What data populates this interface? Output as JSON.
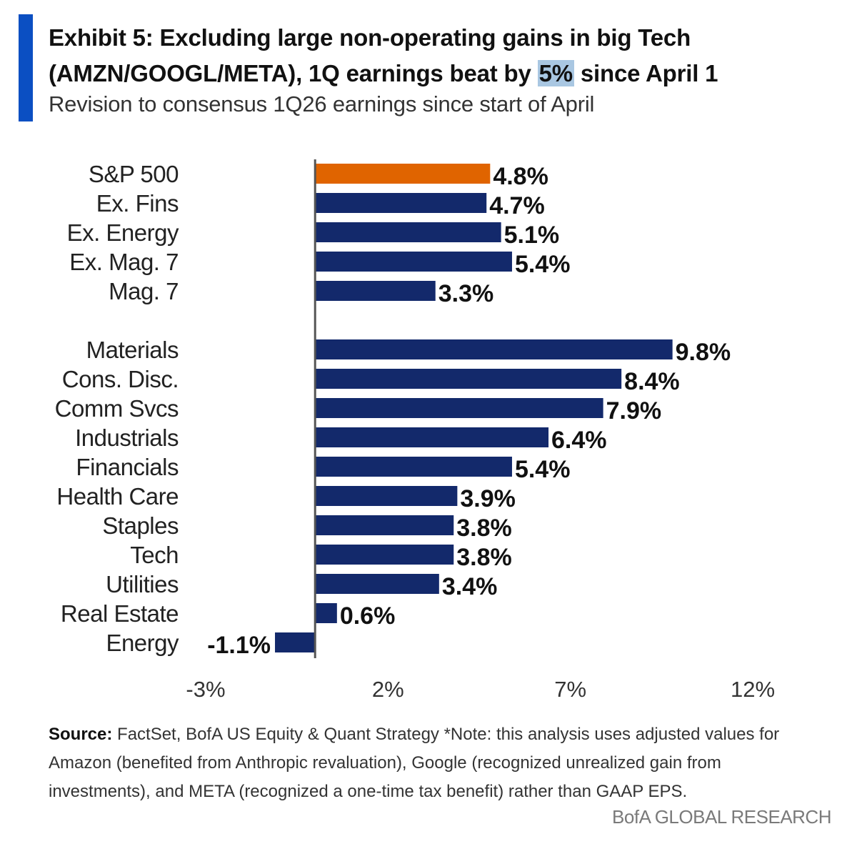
{
  "header": {
    "title_part1": "Exhibit 5: Excluding large non-operating gains in big Tech (AMZN/GOOGL/META), 1Q earnings beat by ",
    "title_highlight": "5%",
    "title_part2": " since April 1",
    "subtitle": "Revision to consensus 1Q26 earnings since start of April"
  },
  "chart_data": {
    "type": "bar",
    "orientation": "horizontal",
    "colors": {
      "highlight": "#e06400",
      "default": "#13296b",
      "axis": "#555555"
    },
    "categories": [
      "S&P 500",
      "Ex. Fins",
      "Ex. Energy",
      "Ex. Mag. 7",
      "Mag. 7",
      "Materials",
      "Cons. Disc.",
      "Comm Svcs",
      "Industrials",
      "Financials",
      "Health Care",
      "Staples",
      "Tech",
      "Utilities",
      "Real Estate",
      "Energy"
    ],
    "values": [
      4.8,
      4.7,
      5.1,
      5.4,
      3.3,
      9.8,
      8.4,
      7.9,
      6.4,
      5.4,
      3.9,
      3.8,
      3.8,
      3.4,
      0.6,
      -1.1
    ],
    "value_labels": [
      "4.8%",
      "4.7%",
      "5.1%",
      "5.4%",
      "3.3%",
      "9.8%",
      "8.4%",
      "7.9%",
      "6.4%",
      "5.4%",
      "3.9%",
      "3.8%",
      "3.8%",
      "3.4%",
      "0.6%",
      "-1.1%"
    ],
    "highlight_index": 0,
    "xlim": [
      -3,
      12
    ],
    "xticks": [
      -3,
      2,
      7,
      12
    ],
    "xtick_labels": [
      "-3%",
      "2%",
      "7%",
      "12%"
    ],
    "grid": false,
    "legend": "none"
  },
  "footer": {
    "source_label": "Source:",
    "source_text": " FactSet, BofA US Equity & Quant Strategy *Note: this analysis uses adjusted values for Amazon (benefited from Anthropic revaluation), Google (recognized unrealized gain from investments), and META (recognized a one-time tax benefit) rather than GAAP EPS.",
    "brand": "BofA GLOBAL RESEARCH"
  }
}
